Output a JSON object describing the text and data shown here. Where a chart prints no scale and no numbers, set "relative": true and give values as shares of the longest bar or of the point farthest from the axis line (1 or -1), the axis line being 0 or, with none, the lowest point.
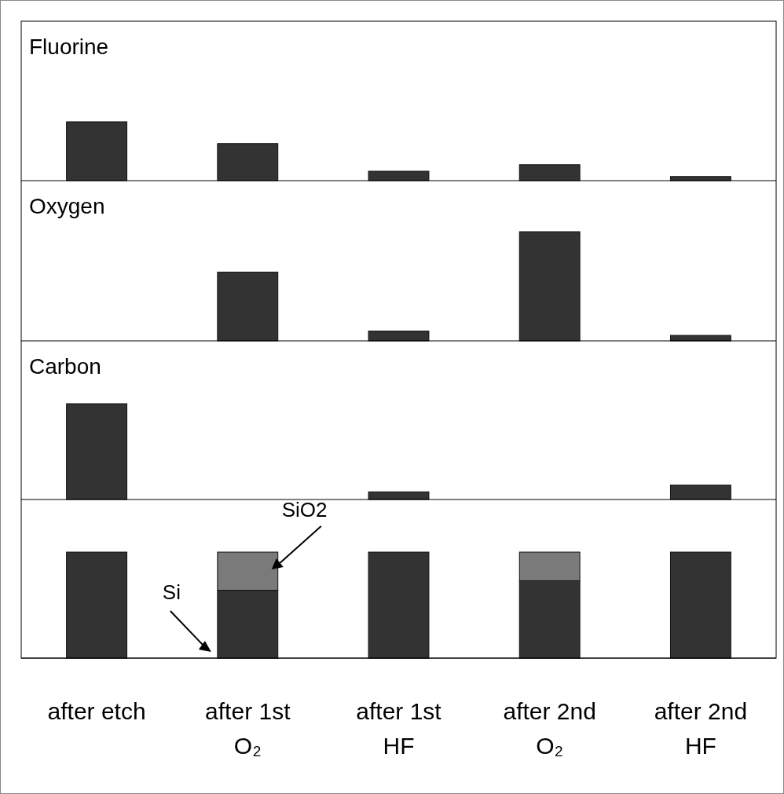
{
  "chart_data": [
    {
      "type": "bar",
      "title": "Fluorine",
      "categories": [
        null,
        null,
        null,
        null,
        null
      ],
      "values": [
        1,
        0.63,
        0.16,
        0.27,
        0.07
      ],
      "color": "#333333",
      "relative": true,
      "tick_labels": false
    },
    {
      "type": "bar",
      "title": "Oxygen",
      "categories": [
        null,
        null,
        null,
        null,
        null
      ],
      "values": [
        0,
        0.63,
        0.09,
        1,
        0.05
      ],
      "color": "#333333",
      "relative": true,
      "tick_labels": false
    },
    {
      "type": "bar",
      "title": "Carbon",
      "categories": [
        null,
        null,
        null,
        null,
        null
      ],
      "values": [
        1,
        0,
        0.08,
        0,
        0.15
      ],
      "color": "#333333",
      "relative": true,
      "tick_labels": false
    },
    {
      "type": "bar",
      "stacked": true,
      "categories": [
        "after etch",
        "after 1st O₂",
        "after 1st HF",
        "after 2nd O₂",
        "after 2nd HF"
      ],
      "relative": true,
      "tick_labels": "x",
      "series": [
        {
          "name": "Si",
          "color": "#333333",
          "values": [
            1,
            0.64,
            1,
            0.73,
            1
          ]
        },
        {
          "name": "SiO2",
          "color": "#7a7a7a",
          "values": [
            0,
            0.36,
            0,
            0.27,
            0
          ]
        }
      ]
    }
  ]
}
